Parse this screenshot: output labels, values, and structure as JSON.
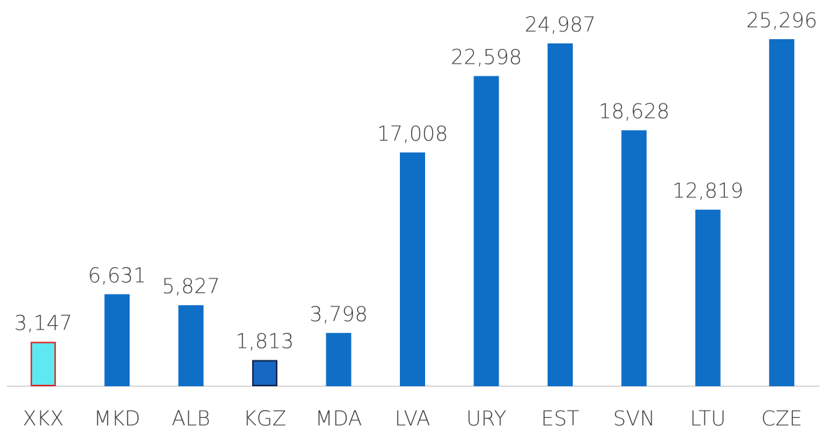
{
  "chart_data": {
    "type": "bar",
    "categories": [
      "XKX",
      "MKD",
      "ALB",
      "KGZ",
      "MDA",
      "LVA",
      "URY",
      "EST",
      "SVN",
      "LTU",
      "CZE"
    ],
    "values": [
      3147,
      6631,
      5827,
      1813,
      3798,
      17008,
      22598,
      24987,
      18628,
      12819,
      25296
    ],
    "value_labels": [
      "3,147",
      "6,631",
      "5,827",
      "1,813",
      "3,798",
      "17,008",
      "22,598",
      "24,987",
      "18,628",
      "12,819",
      "25,296"
    ],
    "colors": [
      "#5ee9f2",
      "#0f6fc6",
      "#0f6fc6",
      "#1668c2",
      "#0f6fc6",
      "#0f6fc6",
      "#0f6fc6",
      "#0f6fc6",
      "#0f6fc6",
      "#0f6fc6",
      "#0f6fc6"
    ],
    "edgecolors": [
      "#e0201c",
      "#0f6fc6",
      "#0f6fc6",
      "#0d1f4a",
      "#0f6fc6",
      "#0f6fc6",
      "#0f6fc6",
      "#0f6fc6",
      "#0f6fc6",
      "#0f6fc6",
      "#0f6fc6"
    ]
  }
}
